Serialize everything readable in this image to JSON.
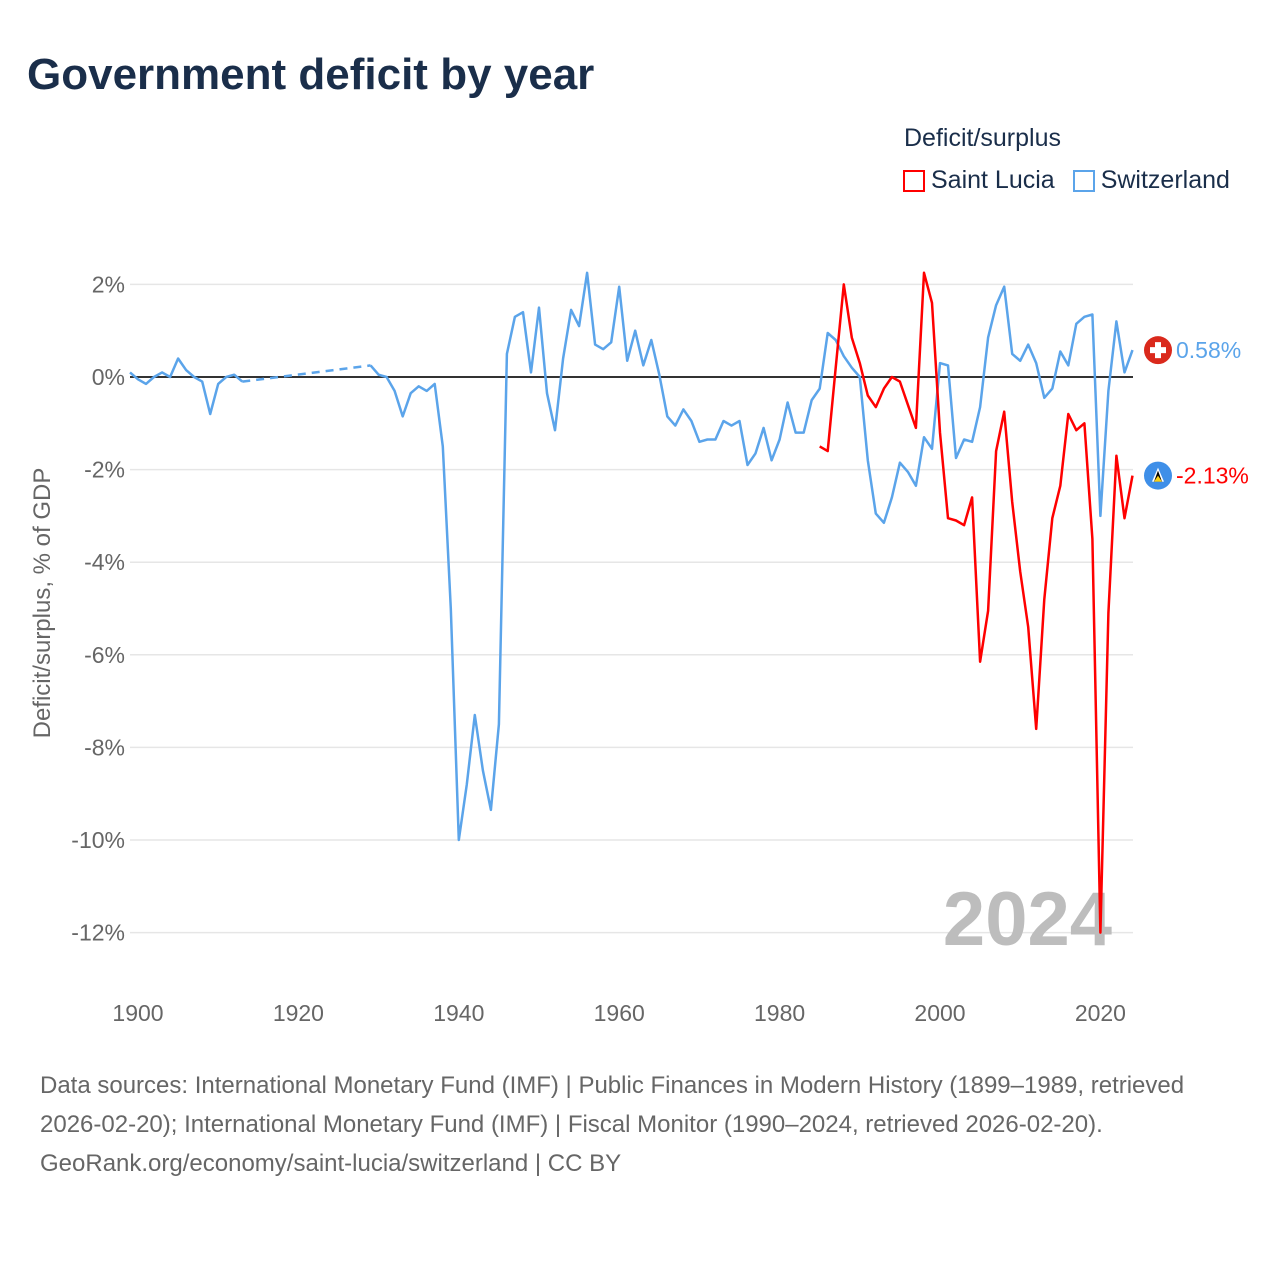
{
  "title": "Government deficit by year",
  "legend": {
    "title": "Deficit/surplus",
    "items": [
      {
        "name": "Saint Lucia",
        "color": "#ff0000"
      },
      {
        "name": "Switzerland",
        "color": "#5ba4ea"
      }
    ]
  },
  "footer": {
    "sources": "Data sources: International Monetary Fund (IMF) | Public Finances in Modern History (1899–1989, retrieved 2026-02-20); International Monetary Fund (IMF) | Fiscal Monitor (1990–2024, retrieved 2026-02-20).",
    "credit": "GeoRank.org/economy/saint-lucia/switzerland | CC BY"
  },
  "chart_data": {
    "type": "line",
    "title": "Government deficit by year",
    "ylabel": "Deficit/surplus, % of GDP",
    "xlabel": "",
    "xlim": [
      1899,
      2024
    ],
    "ylim": [
      -13,
      2.3
    ],
    "x_ticks": [
      1900,
      1920,
      1940,
      1960,
      1980,
      2000,
      2020
    ],
    "x_tick_labels": [
      "1900",
      "1920",
      "1940",
      "1960",
      "1980",
      "2000",
      "2020"
    ],
    "y_ticks": [
      2,
      0,
      -2,
      -4,
      -6,
      -8,
      -10,
      -12
    ],
    "y_tick_labels": [
      "2%",
      "0%",
      "-2%",
      "-4%",
      "-6%",
      "-8%",
      "-10%",
      "-12%"
    ],
    "grid": true,
    "year_watermark": "2024",
    "series": [
      {
        "name": "Switzerland",
        "color": "#5ba4ea",
        "end_label": "0.58%",
        "gap": [
          1913,
          1929
        ],
        "x": [
          1899,
          1900,
          1901,
          1902,
          1903,
          1904,
          1905,
          1906,
          1907,
          1908,
          1909,
          1910,
          1911,
          1912,
          1913,
          1929,
          1930,
          1931,
          1932,
          1933,
          1934,
          1935,
          1936,
          1937,
          1938,
          1939,
          1940,
          1941,
          1942,
          1943,
          1944,
          1945,
          1946,
          1947,
          1948,
          1949,
          1950,
          1951,
          1952,
          1953,
          1954,
          1955,
          1956,
          1957,
          1958,
          1959,
          1960,
          1961,
          1962,
          1963,
          1964,
          1965,
          1966,
          1967,
          1968,
          1969,
          1970,
          1971,
          1972,
          1973,
          1974,
          1975,
          1976,
          1977,
          1978,
          1979,
          1980,
          1981,
          1982,
          1983,
          1984,
          1985,
          1986,
          1987,
          1988,
          1989,
          1990,
          1991,
          1992,
          1993,
          1994,
          1995,
          1996,
          1997,
          1998,
          1999,
          2000,
          2001,
          2002,
          2003,
          2004,
          2005,
          2006,
          2007,
          2008,
          2009,
          2010,
          2011,
          2012,
          2013,
          2014,
          2015,
          2016,
          2017,
          2018,
          2019,
          2020,
          2021,
          2022,
          2023,
          2024
        ],
        "values": [
          0.1,
          -0.05,
          -0.15,
          0.0,
          0.1,
          0.0,
          0.4,
          0.15,
          0.0,
          -0.1,
          -0.8,
          -0.15,
          0.0,
          0.05,
          -0.1,
          0.25,
          0.05,
          0.0,
          -0.3,
          -0.85,
          -0.35,
          -0.2,
          -0.3,
          -0.15,
          -1.5,
          -5.0,
          -10.0,
          -8.8,
          -7.3,
          -8.5,
          -9.35,
          -7.5,
          0.5,
          1.3,
          1.4,
          0.1,
          1.5,
          -0.35,
          -1.15,
          0.4,
          1.45,
          1.1,
          2.25,
          0.7,
          0.6,
          0.75,
          1.95,
          0.35,
          1.0,
          0.25,
          0.8,
          0.05,
          -0.85,
          -1.05,
          -0.7,
          -0.95,
          -1.4,
          -1.35,
          -1.35,
          -0.95,
          -1.05,
          -0.95,
          -1.9,
          -1.65,
          -1.1,
          -1.8,
          -1.35,
          -0.55,
          -1.2,
          -1.2,
          -0.5,
          -0.25,
          0.95,
          0.8,
          0.45,
          0.2,
          0.0,
          -1.8,
          -2.95,
          -3.15,
          -2.6,
          -1.85,
          -2.05,
          -2.35,
          -1.3,
          -1.55,
          0.3,
          0.25,
          -1.75,
          -1.35,
          -1.4,
          -0.65,
          0.85,
          1.55,
          1.95,
          0.5,
          0.35,
          0.7,
          0.3,
          -0.45,
          -0.25,
          0.55,
          0.25,
          1.15,
          1.3,
          1.35,
          -3.0,
          -0.3,
          1.2,
          0.1,
          0.58
        ]
      },
      {
        "name": "Saint Lucia",
        "color": "#ff0000",
        "end_label": "-2.13%",
        "x": [
          1985,
          1986,
          1987,
          1988,
          1989,
          1990,
          1991,
          1992,
          1993,
          1994,
          1995,
          1996,
          1997,
          1998,
          1999,
          2000,
          2001,
          2002,
          2003,
          2004,
          2005,
          2006,
          2007,
          2008,
          2009,
          2010,
          2011,
          2012,
          2013,
          2014,
          2015,
          2016,
          2017,
          2018,
          2019,
          2020,
          2021,
          2022,
          2023,
          2024
        ],
        "values": [
          -1.5,
          -1.6,
          0.2,
          2.0,
          0.85,
          0.3,
          -0.4,
          -0.65,
          -0.25,
          0.0,
          -0.1,
          -0.6,
          -1.1,
          2.25,
          1.6,
          -1.2,
          -3.05,
          -3.1,
          -3.2,
          -2.6,
          -6.15,
          -5.05,
          -1.6,
          -0.75,
          -2.7,
          -4.2,
          -5.4,
          -7.6,
          -4.8,
          -3.05,
          -2.35,
          -0.8,
          -1.15,
          -1.0,
          -3.5,
          -12.0,
          -5.1,
          -1.7,
          -3.05,
          -2.13
        ]
      }
    ]
  }
}
